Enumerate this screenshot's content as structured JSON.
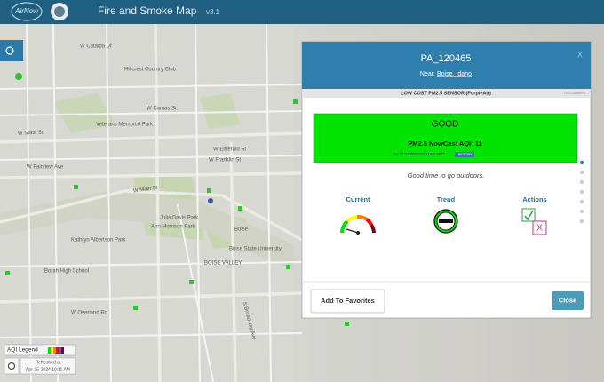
{
  "header": {
    "logo": "AirNow",
    "title": "Fire and Smoke Map",
    "version": "v3.1"
  },
  "map": {
    "labels": [
      "W Catalpa Dr",
      "Hillcrest Country Club",
      "W Camas St",
      "W State St",
      "W Fairview Ave",
      "W Main St",
      "W Franklin St",
      "W Emerald St",
      "Ann Morrison Park",
      "Julia Davis Park",
      "Kathryn Albertson Park",
      "Boise",
      "BOISE VALLEY",
      "Boise State University",
      "S Broadway Ave",
      "Borah High School",
      "W Overland Rd",
      "Veterans Memorial Park"
    ]
  },
  "legend": {
    "title": "AQI Legend",
    "refreshed_label": "Refreshed at",
    "refreshed_time": "Apr-25-2024 10:11 AM"
  },
  "modal": {
    "sensor_id": "PA_120465",
    "near_label": "Near:",
    "near_place": "Boise, Idaho",
    "close_x": "X",
    "sensor_type": "LOW COST PM2.5 SENSOR (PurpleAir)",
    "disclaimers": "DISCLAIMERS",
    "category": "GOOD",
    "aqi_text": "PM2.5 NowCast AQI: 11",
    "as_of": "As Of 04/25/2024 11am MDT",
    "history": "HISTORY",
    "message": "Good time to go outdoors.",
    "current": "Current",
    "trend": "Trend",
    "actions": "Actions",
    "action_x": "X",
    "favorites_button": "Add To Favorites",
    "close_button": "Close"
  }
}
